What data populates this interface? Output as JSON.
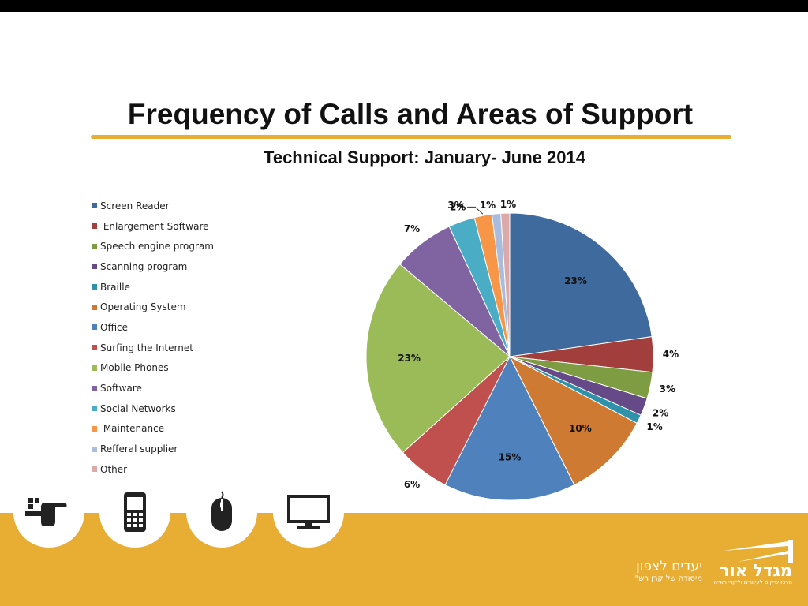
{
  "slide": {
    "title": "Frequency of Calls and Areas of Support",
    "subtitle": "Technical Support: January- June 2014"
  },
  "colors": {
    "accent": "#E8AE34",
    "topbar": "#000000",
    "footer_band": "#E8AE34"
  },
  "footer": {
    "icons": [
      "hand-pointing-icon",
      "mobile-phone-icon",
      "computer-mouse-icon",
      "monitor-icon"
    ],
    "logo_left_line1": "יעדים לצפון",
    "logo_left_line2": "מיסודה של קרן רש\"י",
    "logo_right_line1": "מגדל אור",
    "logo_right_line2": "מרכז שיקום לעיוורים וליקויי ראייה"
  },
  "chart_data": {
    "type": "pie",
    "title": "Technical Support: January- June 2014",
    "legend_position": "left",
    "labels": [
      "Screen Reader",
      " Enlargement Software",
      "Speech engine program",
      "Scanning program",
      "Braille",
      "Operating System",
      "Office",
      "Surfing the Internet",
      "Mobile Phones",
      "Software",
      "Social Networks",
      " Maintenance",
      "Refferal supplier",
      "Other"
    ],
    "values": [
      23,
      4,
      3,
      2,
      1,
      10,
      15,
      6,
      23,
      7,
      3,
      2,
      1,
      1
    ],
    "value_labels": [
      "23%",
      "4%",
      "3%",
      "2%",
      "1%",
      "10%",
      "15%",
      "6%",
      "23%",
      "7%",
      "3%",
      "2%",
      "1%",
      "1%"
    ],
    "colors": [
      "#3F6A9E",
      "#A23F3C",
      "#7E9C41",
      "#664A87",
      "#2E93AA",
      "#CF7A33",
      "#4F81BD",
      "#C0504D",
      "#9BBB59",
      "#8064A2",
      "#4BACC6",
      "#F79646",
      "#AABCDD",
      "#DAA9A8"
    ]
  }
}
